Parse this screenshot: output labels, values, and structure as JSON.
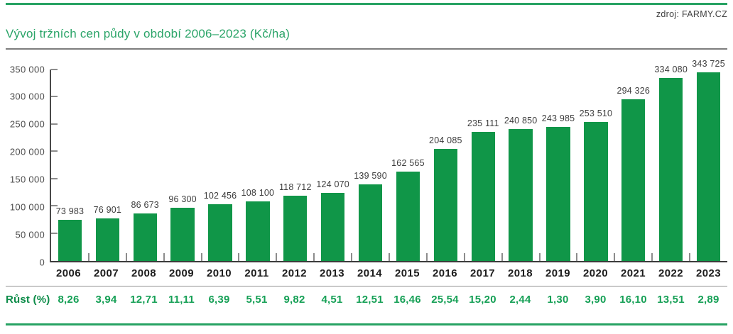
{
  "source": "zdroj: FARMY.CZ",
  "title": "Vývoj tržních cen půdy v období 2006–2023 (Kč/ha)",
  "growth_row_label": "Růst (%)",
  "colors": {
    "bar_green": "#109648",
    "title_green": "#2aa468",
    "rule_green": "#27a263",
    "growth_value_green": "#16a056",
    "growth_label_green": "#0d8c49",
    "value_label_gray": "#3d3d3d",
    "axis_gray": "#4a4a4a"
  },
  "chart_data": {
    "type": "bar",
    "title": "Vývoj tržních cen půdy v období 2006–2023 (Kč/ha)",
    "ylabel": "Kč/ha",
    "xlabel": "",
    "categories": [
      "2006",
      "2007",
      "2008",
      "2009",
      "2010",
      "2011",
      "2012",
      "2013",
      "2014",
      "2015",
      "2016",
      "2017",
      "2018",
      "2019",
      "2020",
      "2021",
      "2022",
      "2023"
    ],
    "values": [
      73983,
      76901,
      86673,
      96300,
      102456,
      108100,
      118712,
      124070,
      139590,
      162565,
      204085,
      235111,
      240850,
      243985,
      253510,
      294326,
      334080,
      343725
    ],
    "value_labels": [
      "73 983",
      "76 901",
      "86 673",
      "96 300",
      "102 456",
      "108 100",
      "118 712",
      "124 070",
      "139 590",
      "162 565",
      "204 085",
      "235 111",
      "240 850",
      "243 985",
      "253 510",
      "294 326",
      "334 080",
      "343 725"
    ],
    "growth_pct": [
      8.26,
      3.94,
      12.71,
      11.11,
      6.39,
      5.51,
      9.82,
      4.51,
      12.51,
      16.46,
      25.54,
      15.2,
      2.44,
      1.3,
      3.9,
      16.1,
      13.51,
      2.89
    ],
    "growth_pct_labels": [
      "8,26",
      "3,94",
      "12,71",
      "11,11",
      "6,39",
      "5,51",
      "9,82",
      "4,51",
      "12,51",
      "16,46",
      "25,54",
      "15,20",
      "2,44",
      "1,30",
      "3,90",
      "16,10",
      "13,51",
      "2,89"
    ],
    "ylim": [
      0,
      350000
    ],
    "ytick_step": 50000,
    "ytick_labels": [
      "0",
      "50 000",
      "100 000",
      "150 000",
      "200 000",
      "250 000",
      "300 000",
      "350 000"
    ],
    "grid": false,
    "legend": "none",
    "bar_label_position": "above"
  }
}
